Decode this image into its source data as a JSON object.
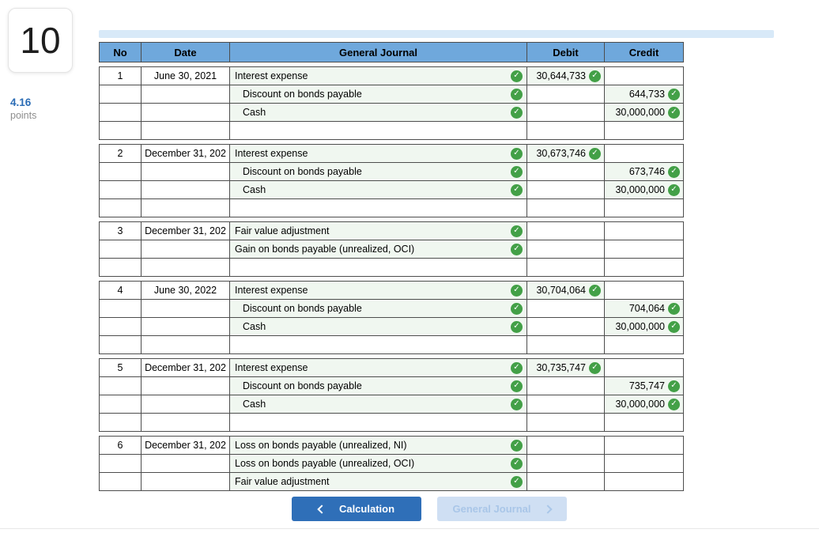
{
  "question": {
    "number": "10",
    "points_value": "4.16",
    "points_label": "points"
  },
  "table": {
    "headers": [
      "No",
      "Date",
      "General Journal",
      "Debit",
      "Credit"
    ],
    "entries": [
      {
        "no": "1",
        "date": "June 30, 2021",
        "trailing_blank": true,
        "rows": [
          {
            "account": "Interest expense",
            "account_check": true,
            "indent": false,
            "debit": "30,644,733",
            "debit_check": true,
            "credit": "",
            "credit_check": false
          },
          {
            "account": "Discount on bonds payable",
            "account_check": true,
            "indent": true,
            "debit": "",
            "debit_check": false,
            "credit": "644,733",
            "credit_check": true
          },
          {
            "account": "Cash",
            "account_check": true,
            "indent": true,
            "debit": "",
            "debit_check": false,
            "credit": "30,000,000",
            "credit_check": true
          }
        ]
      },
      {
        "no": "2",
        "date": "December 31, 202",
        "trailing_blank": true,
        "rows": [
          {
            "account": "Interest expense",
            "account_check": true,
            "indent": false,
            "debit": "30,673,746",
            "debit_check": true,
            "credit": "",
            "credit_check": false
          },
          {
            "account": "Discount on bonds payable",
            "account_check": true,
            "indent": true,
            "debit": "",
            "debit_check": false,
            "credit": "673,746",
            "credit_check": true
          },
          {
            "account": "Cash",
            "account_check": true,
            "indent": true,
            "debit": "",
            "debit_check": false,
            "credit": "30,000,000",
            "credit_check": true
          }
        ]
      },
      {
        "no": "3",
        "date": "December 31, 202",
        "trailing_blank": true,
        "rows": [
          {
            "account": "Fair value adjustment",
            "account_check": true,
            "indent": false,
            "debit": "",
            "debit_check": false,
            "credit": "",
            "credit_check": false
          },
          {
            "account": "Gain on bonds payable (unrealized, OCI)",
            "account_check": true,
            "indent": false,
            "debit": "",
            "debit_check": false,
            "credit": "",
            "credit_check": false
          }
        ]
      },
      {
        "no": "4",
        "date": "June 30, 2022",
        "trailing_blank": true,
        "rows": [
          {
            "account": "Interest expense",
            "account_check": true,
            "indent": false,
            "debit": "30,704,064",
            "debit_check": true,
            "credit": "",
            "credit_check": false
          },
          {
            "account": "Discount on bonds payable",
            "account_check": true,
            "indent": true,
            "debit": "",
            "debit_check": false,
            "credit": "704,064",
            "credit_check": true
          },
          {
            "account": "Cash",
            "account_check": true,
            "indent": true,
            "debit": "",
            "debit_check": false,
            "credit": "30,000,000",
            "credit_check": true
          }
        ]
      },
      {
        "no": "5",
        "date": "December 31, 202",
        "trailing_blank": true,
        "rows": [
          {
            "account": "Interest expense",
            "account_check": true,
            "indent": false,
            "debit": "30,735,747",
            "debit_check": true,
            "credit": "",
            "credit_check": false
          },
          {
            "account": "Discount on bonds payable",
            "account_check": true,
            "indent": true,
            "debit": "",
            "debit_check": false,
            "credit": "735,747",
            "credit_check": true
          },
          {
            "account": "Cash",
            "account_check": true,
            "indent": true,
            "debit": "",
            "debit_check": false,
            "credit": "30,000,000",
            "credit_check": true
          }
        ]
      },
      {
        "no": "6",
        "date": "December 31, 202",
        "trailing_blank": false,
        "rows": [
          {
            "account": "Loss on bonds payable (unrealized, NI)",
            "account_check": true,
            "indent": false,
            "debit": "",
            "debit_check": false,
            "credit": "",
            "credit_check": false
          },
          {
            "account": "Loss on bonds payable (unrealized, OCI)",
            "account_check": true,
            "indent": false,
            "debit": "",
            "debit_check": false,
            "credit": "",
            "credit_check": false
          },
          {
            "account": "Fair value adjustment",
            "account_check": true,
            "indent": false,
            "debit": "",
            "debit_check": false,
            "credit": "",
            "credit_check": false
          }
        ]
      }
    ]
  },
  "nav": {
    "calculation": {
      "label": "Calculation",
      "icon": "chevron-left-icon"
    },
    "general_journal": {
      "label": "General Journal",
      "icon": "chevron-right-icon"
    }
  },
  "icons": {
    "check_glyph": "✓"
  },
  "colors": {
    "header_blue": "#6FA8DC",
    "check_green": "#43A047",
    "filled_cell_green": "#F0F7F0",
    "primary_button_blue": "#2F6FB8",
    "disabled_button_bg": "#CFDFF3",
    "disabled_button_text": "#A9C6E8",
    "points_blue": "#2B6CB5",
    "scrollbar_blue": "#D8E9F8",
    "grid_border": "#4d4d4d"
  }
}
